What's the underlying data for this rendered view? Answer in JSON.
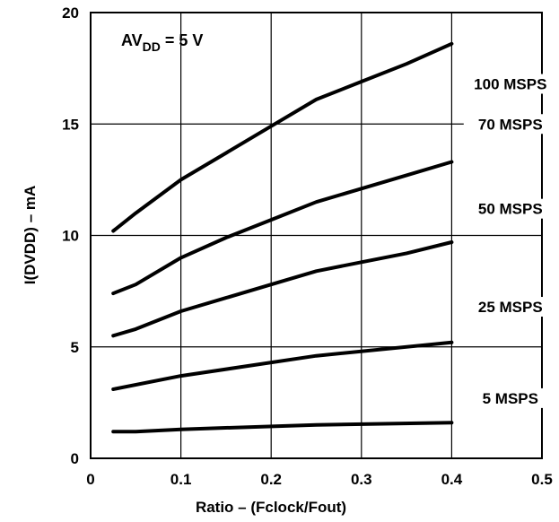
{
  "chart_data": {
    "type": "line",
    "title": "",
    "xlabel": "Ratio – (Fclock/Fout)",
    "ylabel": "I(DVDD) – mA",
    "xlim": [
      0,
      0.5
    ],
    "ylim": [
      0,
      20
    ],
    "x_ticks": [
      "0",
      "0.1",
      "0.2",
      "0.3",
      "0.4",
      "0.5"
    ],
    "y_ticks": [
      "0",
      "5",
      "10",
      "15",
      "20"
    ],
    "grid": true,
    "legend": "labels placed at right of each curve",
    "annotation": {
      "main": "AV",
      "sub": "DD",
      "rest": " = 5 V"
    },
    "series": [
      {
        "name": "100 MSPS",
        "x": [
          0.025,
          0.05,
          0.1,
          0.15,
          0.2,
          0.25,
          0.3,
          0.35,
          0.4
        ],
        "values": [
          10.2,
          11.0,
          12.5,
          13.7,
          14.9,
          16.1,
          16.9,
          17.7,
          18.6
        ]
      },
      {
        "name": "70 MSPS",
        "x": [
          0.025,
          0.05,
          0.1,
          0.15,
          0.2,
          0.25,
          0.3,
          0.35,
          0.4
        ],
        "values": [
          7.4,
          7.8,
          9.0,
          9.9,
          10.7,
          11.5,
          12.1,
          12.7,
          13.3
        ]
      },
      {
        "name": "50 MSPS",
        "x": [
          0.025,
          0.05,
          0.1,
          0.15,
          0.2,
          0.25,
          0.3,
          0.35,
          0.4
        ],
        "values": [
          5.5,
          5.8,
          6.6,
          7.2,
          7.8,
          8.4,
          8.8,
          9.2,
          9.7
        ]
      },
      {
        "name": "25 MSPS",
        "x": [
          0.025,
          0.1,
          0.25,
          0.4
        ],
        "values": [
          3.1,
          3.7,
          4.6,
          5.2
        ]
      },
      {
        "name": "5 MSPS",
        "x": [
          0.025,
          0.05,
          0.1,
          0.25,
          0.4
        ],
        "values": [
          1.2,
          1.2,
          1.3,
          1.5,
          1.6
        ]
      }
    ],
    "colors": {
      "line": "#000000",
      "grid": "#000000",
      "background": "#ffffff"
    }
  }
}
